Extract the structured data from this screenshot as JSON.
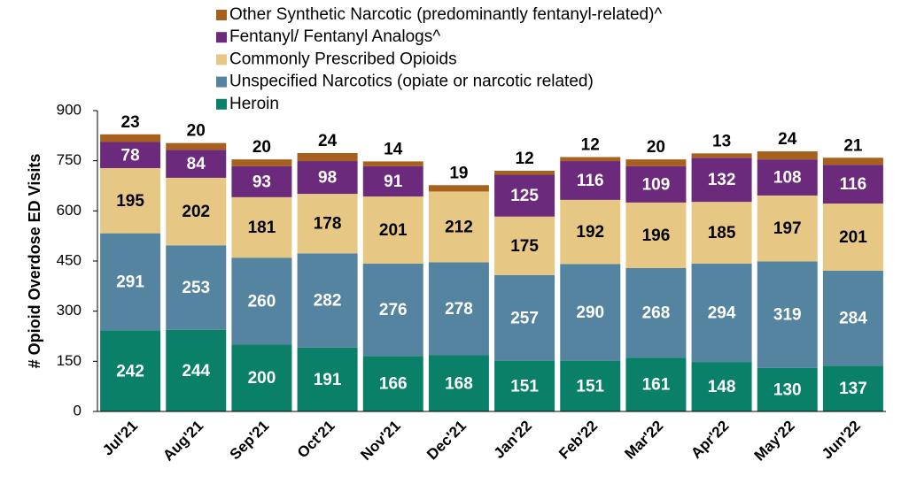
{
  "chart_data": {
    "type": "stacked_bar",
    "y_label": "# Opioid Overdose ED Visits",
    "categories": [
      "Jul'21",
      "Aug'21",
      "Sep'21",
      "Oct'21",
      "Nov'21",
      "Dec'21",
      "Jan'22",
      "Feb'22",
      "Mar'22",
      "Apr'22",
      "May'22",
      "Jun'22"
    ],
    "series": [
      {
        "name": "Heroin",
        "color": "#0a8068",
        "label_color": "#ffffff",
        "values": [
          242,
          244,
          200,
          191,
          166,
          168,
          151,
          151,
          161,
          148,
          130,
          137
        ]
      },
      {
        "name": "Unspecified Narcotics (opiate or narcotic related)",
        "color": "#54849f",
        "label_color": "#ffffff",
        "values": [
          291,
          253,
          260,
          282,
          276,
          278,
          257,
          290,
          268,
          294,
          319,
          284
        ]
      },
      {
        "name": "Commonly Prescribed Opioids",
        "color": "#e6c784",
        "label_color": "#000000",
        "values": [
          195,
          202,
          181,
          178,
          201,
          212,
          175,
          192,
          196,
          185,
          197,
          201
        ]
      },
      {
        "name": "Fentanyl/ Fentanyl Analogs^",
        "color": "#6b2a7b",
        "label_color": "#ffffff",
        "values": [
          78,
          84,
          93,
          98,
          91,
          null,
          125,
          116,
          109,
          132,
          108,
          116
        ]
      },
      {
        "name": "Other Synthetic Narcotic (predominantly fentanyl-related)^",
        "color": "#a8611d",
        "label_color": "#000000",
        "label_position": "above",
        "values": [
          23,
          20,
          20,
          24,
          14,
          19,
          12,
          12,
          20,
          13,
          24,
          21
        ]
      }
    ],
    "ylim": [
      0,
      900
    ],
    "yticks": [
      0,
      150,
      300,
      450,
      600,
      750,
      900
    ],
    "grid": false,
    "legend": "top"
  }
}
